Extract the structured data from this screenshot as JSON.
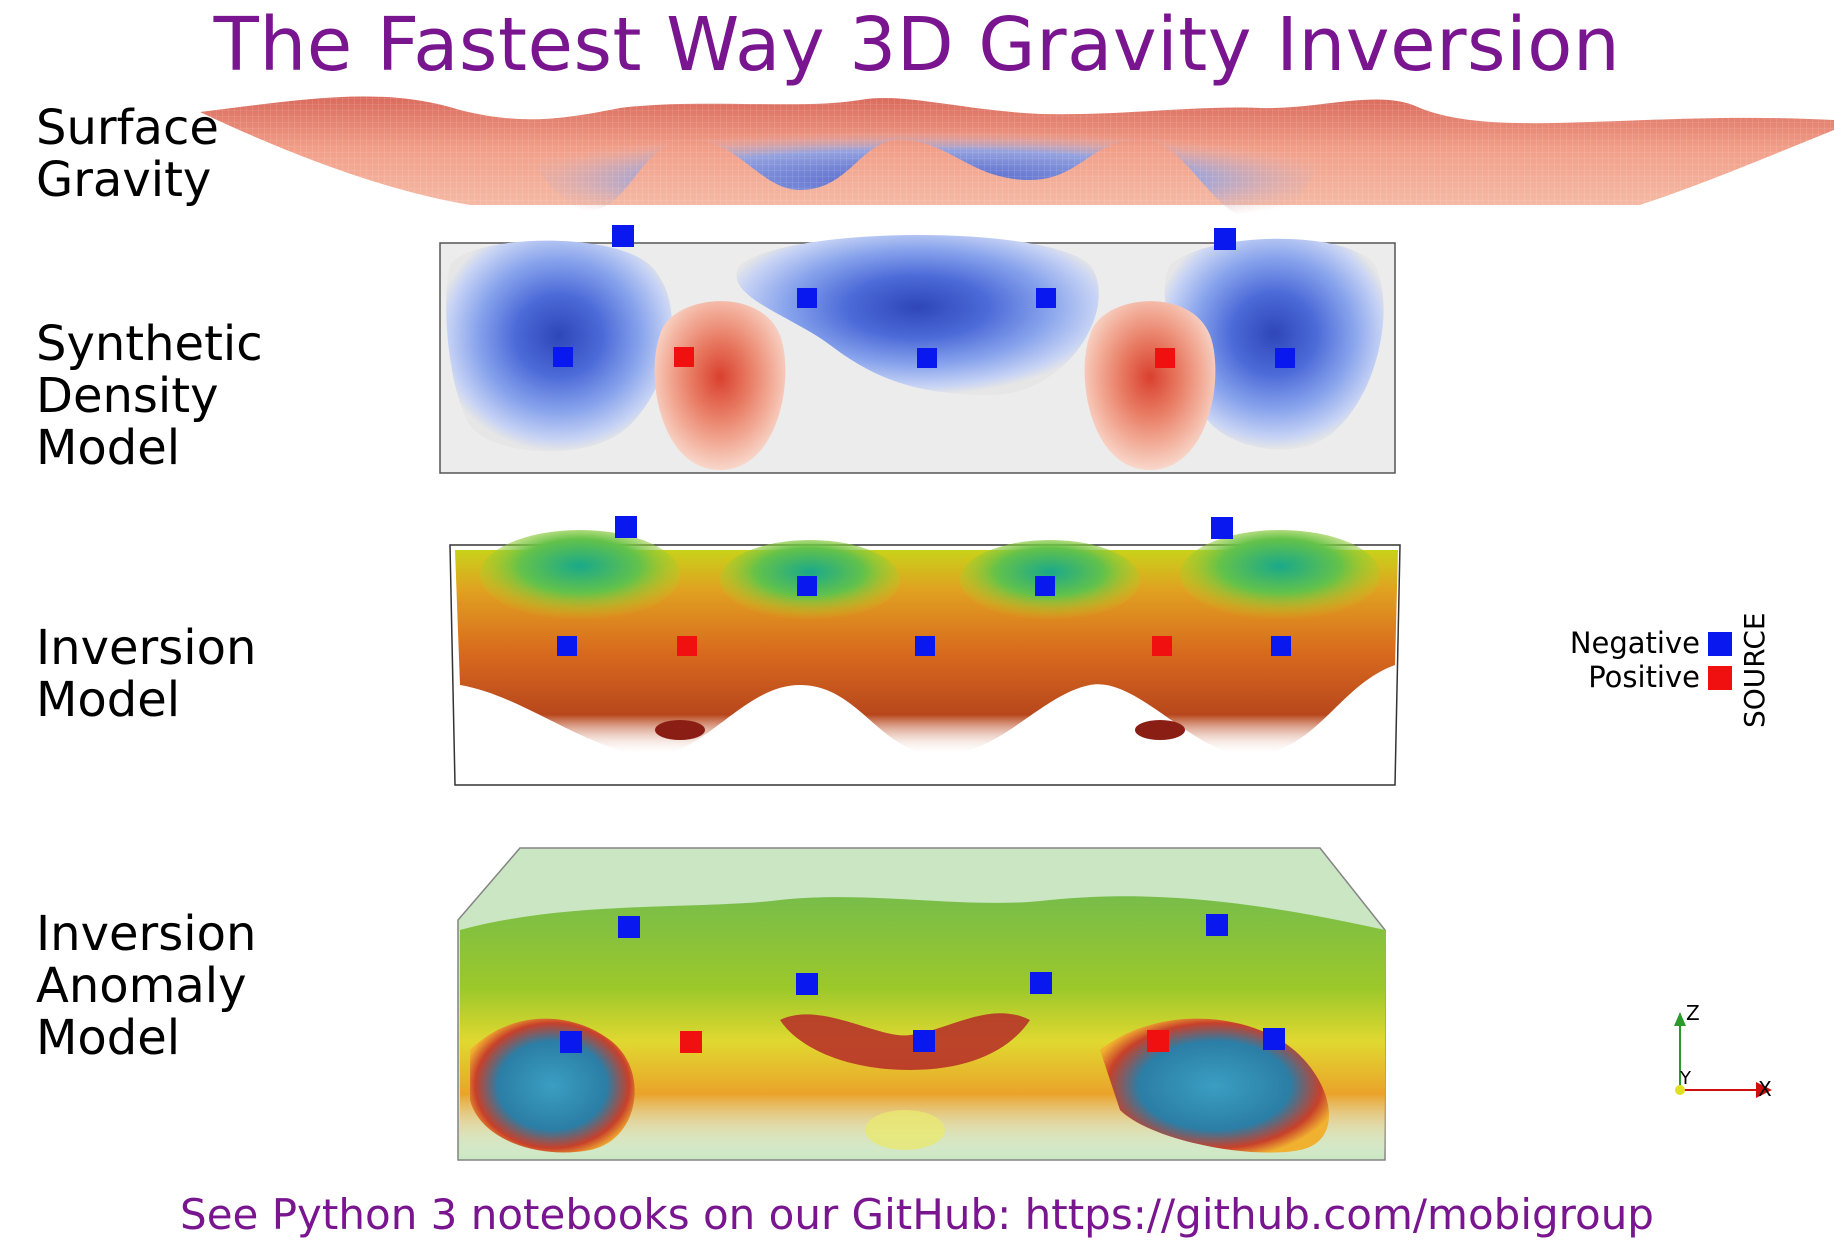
{
  "title": "The Fastest Way 3D Gravity Inversion",
  "rows": [
    {
      "line1": "Surface",
      "line2": "Gravity",
      "line3": ""
    },
    {
      "line1": "Synthetic",
      "line2": "Density",
      "line3": "Model"
    },
    {
      "line1": "Inversion",
      "line2": "Model",
      "line3": ""
    },
    {
      "line1": "Inversion",
      "line2": "Anomaly",
      "line3": "Model"
    }
  ],
  "legend": {
    "title": "SOURCE",
    "items": [
      {
        "label": "Negative",
        "color": "#0a18f0"
      },
      {
        "label": "Positive",
        "color": "#f01010"
      }
    ]
  },
  "axes": {
    "z": "Z",
    "y": "Y",
    "x": "X"
  },
  "footer": "See Python 3 notebooks on our GitHub: https://github.com/mobigroup",
  "colors": {
    "accent": "#7a1590",
    "negative_source": "#0a18f0",
    "positive_source": "#f01010"
  }
}
